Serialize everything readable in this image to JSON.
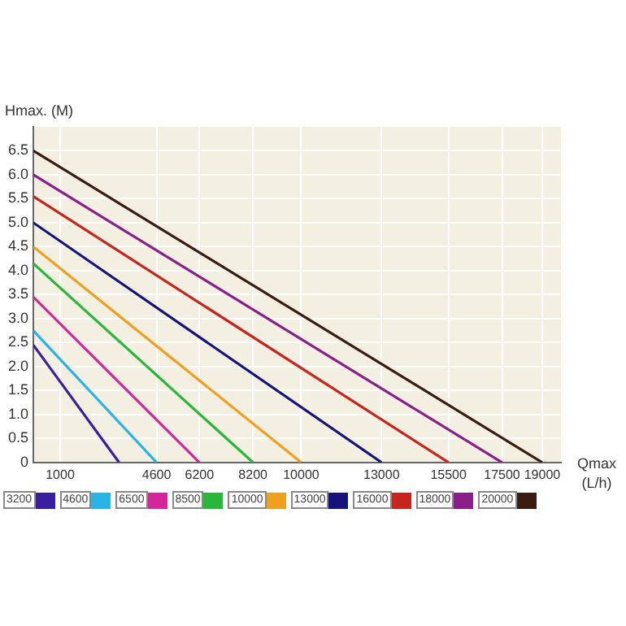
{
  "chart_data": {
    "type": "line",
    "xlabel": "Qmax\n(L/h)",
    "ylabel": "Hmax. (M)",
    "xlim": [
      0,
      19700
    ],
    "xticks": [
      1000,
      4600,
      6200,
      8200,
      10000,
      13000,
      15500,
      17500,
      19000
    ],
    "ylim": [
      0,
      7
    ],
    "yticks": [
      0,
      0.5,
      {
        "value": 1,
        "label": "1.0"
      },
      1.5,
      {
        "value": 2,
        "label": "2.0"
      },
      2.5,
      {
        "value": 3,
        "label": "3.0"
      },
      3.5,
      {
        "value": 4,
        "label": "4.0"
      },
      4.5,
      {
        "value": 5,
        "label": "5.0"
      },
      5.5,
      {
        "value": 6,
        "label": "6.0"
      },
      6.5
    ],
    "grid": true,
    "legend": "bottom",
    "marker": "none",
    "line_style": "solid",
    "series": [
      {
        "name": "3200",
        "color": "#3a20a0",
        "x": [
          0,
          3200
        ],
        "values": [
          2.45,
          0
        ]
      },
      {
        "name": "4600",
        "color": "#2ab4e6",
        "x": [
          0,
          4600
        ],
        "values": [
          2.75,
          0
        ]
      },
      {
        "name": "6500",
        "color": "#d6259a",
        "x": [
          0,
          6200
        ],
        "values": [
          3.45,
          0
        ]
      },
      {
        "name": "8500",
        "color": "#27b83a",
        "x": [
          0,
          8200
        ],
        "values": [
          4.15,
          0
        ]
      },
      {
        "name": "10000",
        "color": "#f0a020",
        "x": [
          0,
          10000
        ],
        "values": [
          4.5,
          0
        ]
      },
      {
        "name": "13000",
        "color": "#14147a",
        "x": [
          0,
          13000
        ],
        "values": [
          5.0,
          0
        ]
      },
      {
        "name": "16000",
        "color": "#c8241e",
        "x": [
          0,
          15500
        ],
        "values": [
          5.55,
          0
        ]
      },
      {
        "name": "18000",
        "color": "#8a1e8a",
        "x": [
          0,
          17500
        ],
        "values": [
          6.0,
          0
        ]
      },
      {
        "name": "20000",
        "color": "#3a1c12",
        "x": [
          0,
          19000
        ],
        "values": [
          6.5,
          0
        ]
      }
    ]
  }
}
